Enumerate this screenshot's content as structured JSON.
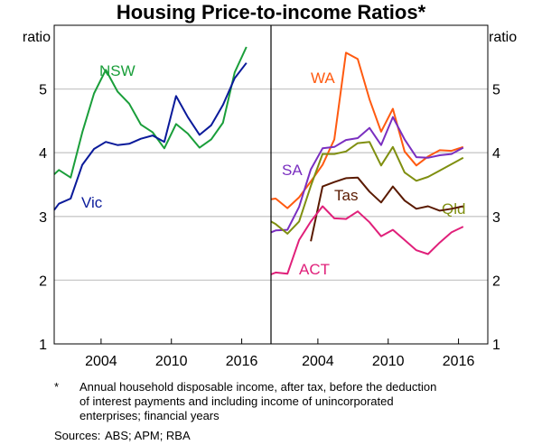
{
  "chart_data": [
    {
      "type": "line",
      "title": "Housing Price-to-income Ratios*",
      "panel": "left",
      "ylabel": "ratio",
      "ylim": [
        1,
        6
      ],
      "yticks": [
        1,
        2,
        3,
        4,
        5
      ],
      "xlim": [
        2000,
        2018.5
      ],
      "xticks": [
        2004,
        2010,
        2016
      ],
      "grid": true,
      "x": [
        2000,
        2000.4,
        2001.4,
        2002.4,
        2003.4,
        2004.4,
        2005.4,
        2006.4,
        2007.4,
        2008.4,
        2009.4,
        2010.4,
        2011.4,
        2012.4,
        2013.4,
        2014.4,
        2015.4,
        2016.4
      ],
      "series": [
        {
          "name": "NSW",
          "color": "#1a9e3a",
          "values": [
            3.66,
            3.73,
            3.61,
            4.32,
            4.93,
            5.3,
            4.96,
            4.77,
            4.44,
            4.32,
            4.07,
            4.45,
            4.3,
            4.08,
            4.21,
            4.47,
            5.26,
            5.66
          ]
        },
        {
          "name": "Vic",
          "color": "#0a1a9a",
          "values": [
            3.1,
            3.2,
            3.28,
            3.81,
            4.06,
            4.17,
            4.12,
            4.14,
            4.22,
            4.27,
            4.17,
            4.89,
            4.56,
            4.28,
            4.43,
            4.75,
            5.17,
            5.41
          ]
        }
      ]
    },
    {
      "type": "line",
      "panel": "right",
      "ylabel": "ratio",
      "ylim": [
        1,
        6
      ],
      "yticks": [
        1,
        2,
        3,
        4,
        5
      ],
      "xlim": [
        2000,
        2018.5
      ],
      "xticks": [
        2004,
        2010,
        2016
      ],
      "grid": true,
      "x": [
        2000,
        2000.4,
        2001.4,
        2002.4,
        2003.4,
        2004.4,
        2005.4,
        2006.4,
        2007.4,
        2008.4,
        2009.4,
        2010.4,
        2011.4,
        2012.4,
        2013.4,
        2014.4,
        2015.4,
        2016.4
      ],
      "series": [
        {
          "name": "WA",
          "color": "#ff5a10",
          "values": [
            3.27,
            3.28,
            3.13,
            3.3,
            3.55,
            3.81,
            4.21,
            5.57,
            5.47,
            4.84,
            4.33,
            4.69,
            4.02,
            3.8,
            3.94,
            4.04,
            4.03,
            4.09
          ]
        },
        {
          "name": "SA",
          "color": "#7a2fc0",
          "values": [
            2.75,
            2.78,
            2.79,
            3.15,
            3.74,
            4.07,
            4.09,
            4.2,
            4.23,
            4.39,
            4.12,
            4.56,
            4.21,
            3.93,
            3.92,
            3.96,
            3.98,
            4.08
          ]
        },
        {
          "name": "Qld",
          "color": "#7f8f10",
          "values": [
            2.92,
            2.88,
            2.73,
            2.92,
            3.48,
            3.98,
            3.98,
            4.02,
            4.15,
            4.17,
            3.8,
            4.09,
            3.69,
            3.56,
            3.62,
            3.72,
            3.82,
            3.92
          ]
        },
        {
          "name": "Tas",
          "color": "#5a1a00",
          "values": [
            null,
            null,
            null,
            null,
            2.61,
            3.47,
            3.54,
            3.6,
            3.61,
            3.39,
            3.22,
            3.47,
            3.25,
            3.12,
            3.16,
            3.09,
            3.12,
            3.16
          ]
        },
        {
          "name": "ACT",
          "color": "#e0207a",
          "values": [
            2.09,
            2.12,
            2.1,
            2.63,
            2.92,
            3.16,
            2.97,
            2.96,
            3.08,
            2.91,
            2.69,
            2.79,
            2.63,
            2.47,
            2.41,
            2.59,
            2.75,
            2.84
          ]
        }
      ]
    }
  ],
  "footnote": {
    "marker": "*",
    "lines": [
      "Annual household disposable income, after tax, before the deduction",
      "of interest payments and including income of unincorporated",
      "enterprises; financial years"
    ]
  },
  "sources": {
    "label": "Sources:",
    "text": "ABS; APM; RBA"
  }
}
